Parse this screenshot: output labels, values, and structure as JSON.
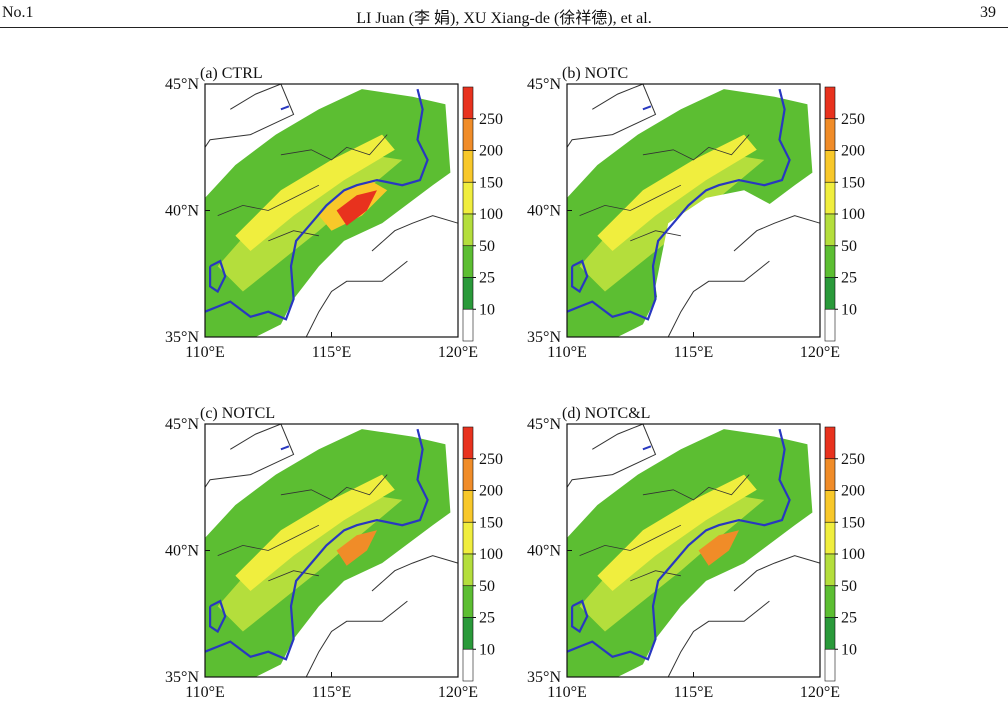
{
  "header": {
    "issue": "No.1",
    "authors": "LI Juan (李 娟), XU Xiang-de (徐祥德), et al.",
    "page_number": "39"
  },
  "figure": {
    "panels": [
      {
        "id": "a",
        "label": "(a) CTRL"
      },
      {
        "id": "b",
        "label": "(b) NOTC"
      },
      {
        "id": "c",
        "label": "(c) NOTCL"
      },
      {
        "id": "d",
        "label": "(d) NOTC&L"
      }
    ],
    "x_ticks": [
      "110°E",
      "115°E",
      "120°E"
    ],
    "y_ticks": [
      "45°N",
      "40°N",
      "35°N"
    ],
    "extent": {
      "lon": [
        110,
        120
      ],
      "lat": [
        35,
        45
      ]
    },
    "colorbar": {
      "labels": [
        "250",
        "200",
        "150",
        "100",
        "50",
        "25",
        "10"
      ],
      "colors": [
        "#e8321e",
        "#f08c28",
        "#f8c82a",
        "#f0ee3e",
        "#b4de3c",
        "#5cbe32",
        "#2a9a3a",
        "#ffffff"
      ]
    },
    "colors": {
      "river": "#2838c0",
      "coast": "#333333",
      "province": "#333333"
    }
  }
}
